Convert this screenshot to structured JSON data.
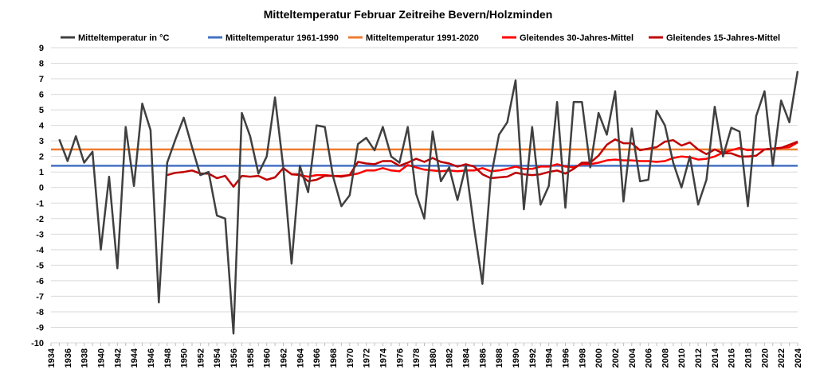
{
  "chart_data": {
    "type": "line",
    "title": "Mitteltemperatur Februar Zeitreihe Bevern/Holzminden",
    "xlabel": "",
    "ylabel": "",
    "xlim": [
      1934,
      2024
    ],
    "ylim": [
      -10,
      9
    ],
    "yticks": [
      -10,
      -9,
      -8,
      -7,
      -6,
      -5,
      -4,
      -3,
      -2,
      -1,
      0,
      1,
      2,
      3,
      4,
      5,
      6,
      7,
      8,
      9
    ],
    "xticks": [
      1934,
      1936,
      1938,
      1940,
      1942,
      1944,
      1946,
      1948,
      1950,
      1952,
      1954,
      1956,
      1958,
      1960,
      1962,
      1964,
      1966,
      1968,
      1970,
      1972,
      1974,
      1976,
      1978,
      1980,
      1982,
      1984,
      1986,
      1988,
      1990,
      1992,
      1994,
      1996,
      1998,
      2000,
      2002,
      2004,
      2006,
      2008,
      2010,
      2012,
      2014,
      2016,
      2018,
      2020,
      2022,
      2024
    ],
    "grid": true,
    "legend_position": "top",
    "series": [
      {
        "name": "Mitteltemperatur in °C",
        "color": "#404040",
        "x": [
          1935,
          1936,
          1937,
          1938,
          1939,
          1940,
          1941,
          1942,
          1943,
          1944,
          1945,
          1946,
          1947,
          1948,
          1949,
          1950,
          1951,
          1952,
          1953,
          1954,
          1955,
          1956,
          1957,
          1958,
          1959,
          1960,
          1961,
          1962,
          1963,
          1964,
          1965,
          1966,
          1967,
          1968,
          1969,
          1970,
          1971,
          1972,
          1973,
          1974,
          1975,
          1976,
          1977,
          1978,
          1979,
          1980,
          1981,
          1982,
          1983,
          1984,
          1985,
          1986,
          1987,
          1988,
          1989,
          1990,
          1991,
          1992,
          1993,
          1994,
          1995,
          1996,
          1997,
          1998,
          1999,
          2000,
          2001,
          2002,
          2003,
          2004,
          2005,
          2006,
          2007,
          2008,
          2009,
          2010,
          2011,
          2012,
          2013,
          2014,
          2015,
          2016,
          2017,
          2018,
          2019,
          2020,
          2021,
          2022,
          2023,
          2024
        ],
        "values": [
          3.1,
          1.7,
          3.3,
          1.6,
          2.3,
          -4.0,
          0.7,
          -5.2,
          3.9,
          0.1,
          5.4,
          3.7,
          -7.4,
          1.6,
          3.1,
          4.5,
          2.6,
          0.8,
          1.0,
          -1.8,
          -2.0,
          -9.4,
          4.8,
          3.3,
          0.9,
          2.0,
          5.8,
          1.3,
          -4.9,
          1.4,
          -0.3,
          4.0,
          3.9,
          0.7,
          -1.2,
          -0.5,
          2.8,
          3.2,
          2.4,
          3.9,
          2.0,
          1.6,
          3.9,
          -0.4,
          -2.0,
          3.6,
          0.4,
          1.3,
          -0.8,
          1.4,
          -2.6,
          -6.2,
          0.6,
          3.4,
          4.2,
          6.9,
          -1.4,
          3.9,
          -1.1,
          0.1,
          5.5,
          -1.3,
          5.5,
          5.5,
          1.3,
          4.8,
          3.4,
          6.2,
          -0.9,
          3.8,
          0.4,
          0.5,
          4.95,
          4.0,
          1.6,
          0.0,
          2.0,
          -1.1,
          0.5,
          5.2,
          2.0,
          3.85,
          3.6,
          -1.2,
          4.6,
          6.2,
          1.4,
          5.6,
          4.2,
          7.5
        ]
      },
      {
        "name": "Mitteltemperatur 1961-1990",
        "color": "#4472c4",
        "x": [
          1934,
          2024
        ],
        "values": [
          1.4,
          1.4
        ]
      },
      {
        "name": "Mitteltemperatur 1991-2020",
        "color": "#ed7d31",
        "x": [
          1934,
          2024
        ],
        "values": [
          2.45,
          2.45
        ]
      },
      {
        "name": "Gleitendes 30-Jahres-Mittel",
        "color": "#ff0000",
        "x": [
          1963,
          1964,
          1965,
          1966,
          1967,
          1968,
          1969,
          1970,
          1971,
          1972,
          1973,
          1974,
          1975,
          1976,
          1977,
          1978,
          1979,
          1980,
          1981,
          1982,
          1983,
          1984,
          1985,
          1986,
          1987,
          1988,
          1989,
          1990,
          1991,
          1992,
          1993,
          1994,
          1995,
          1996,
          1997,
          1998,
          1999,
          2000,
          2001,
          2002,
          2003,
          2004,
          2005,
          2006,
          2007,
          2008,
          2009,
          2010,
          2011,
          2012,
          2013,
          2014,
          2015,
          2016,
          2017,
          2018,
          2019,
          2020,
          2021,
          2022,
          2023,
          2024
        ],
        "values": [
          0.85,
          0.8,
          0.7,
          0.8,
          0.8,
          0.75,
          0.75,
          0.8,
          0.9,
          1.1,
          1.1,
          1.25,
          1.1,
          1.05,
          1.45,
          1.3,
          1.15,
          1.1,
          1.05,
          1.1,
          1.05,
          1.1,
          1.1,
          1.25,
          1.05,
          1.1,
          1.2,
          1.35,
          1.2,
          1.2,
          1.35,
          1.35,
          1.5,
          1.35,
          1.3,
          1.5,
          1.5,
          1.6,
          1.75,
          1.8,
          1.75,
          1.75,
          1.7,
          1.7,
          1.65,
          1.7,
          1.9,
          2.0,
          1.95,
          1.8,
          1.85,
          2.0,
          2.25,
          2.4,
          2.55,
          2.4,
          2.45,
          2.45,
          2.5,
          2.55,
          2.6,
          2.9
        ]
      },
      {
        "name": "Gleitendes 15-Jahres-Mittel",
        "color": "#c00000",
        "x": [
          1948,
          1949,
          1950,
          1951,
          1952,
          1953,
          1954,
          1955,
          1956,
          1957,
          1958,
          1959,
          1960,
          1961,
          1962,
          1963,
          1964,
          1965,
          1966,
          1967,
          1968,
          1969,
          1970,
          1971,
          1972,
          1973,
          1974,
          1975,
          1976,
          1977,
          1978,
          1979,
          1980,
          1981,
          1982,
          1983,
          1984,
          1985,
          1986,
          1987,
          1988,
          1989,
          1990,
          1991,
          1992,
          1993,
          1994,
          1995,
          1996,
          1997,
          1998,
          1999,
          2000,
          2001,
          2002,
          2003,
          2004,
          2005,
          2006,
          2007,
          2008,
          2009,
          2010,
          2011,
          2012,
          2013,
          2014,
          2015,
          2016,
          2017,
          2018,
          2019,
          2020,
          2021,
          2022,
          2023,
          2024
        ],
        "values": [
          0.8,
          0.95,
          1.0,
          1.1,
          0.9,
          0.9,
          0.6,
          0.75,
          0.05,
          0.75,
          0.7,
          0.75,
          0.5,
          0.65,
          1.25,
          0.85,
          0.85,
          0.4,
          0.5,
          0.75,
          0.75,
          0.7,
          0.8,
          1.65,
          1.55,
          1.5,
          1.7,
          1.7,
          1.4,
          1.6,
          1.85,
          1.65,
          1.9,
          1.65,
          1.55,
          1.35,
          1.5,
          1.35,
          0.85,
          0.6,
          0.65,
          0.7,
          0.95,
          0.85,
          0.8,
          0.85,
          1.0,
          1.1,
          0.9,
          1.2,
          1.6,
          1.6,
          2.05,
          2.75,
          3.1,
          2.85,
          2.85,
          2.4,
          2.5,
          2.6,
          2.95,
          3.05,
          2.7,
          2.9,
          2.45,
          2.15,
          2.45,
          2.2,
          2.2,
          2.0,
          2.0,
          2.05,
          2.45,
          2.5,
          2.55,
          2.75,
          2.95
        ]
      }
    ]
  }
}
